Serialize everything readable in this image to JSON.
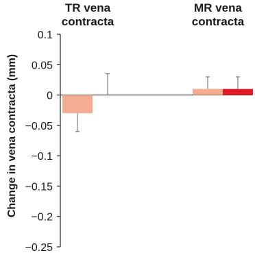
{
  "chart_data": {
    "type": "bar",
    "ylabel": "Change in vena contracta (mm)",
    "ylim": [
      -0.25,
      0.1
    ],
    "yticks": [
      0.1,
      0.05,
      0,
      -0.05,
      -0.1,
      -0.15,
      -0.2,
      -0.25
    ],
    "ytick_labels": [
      "0.1",
      "0.05",
      "0",
      "−0.05",
      "−0.1",
      "−0.15",
      "−0.2",
      "−0.25"
    ],
    "groups": [
      {
        "label_lines": [
          "TR vena",
          "contracta"
        ],
        "bars": [
          {
            "value": -0.03,
            "error": 0.03,
            "color": "#f5ad92"
          },
          {
            "value": 0.0,
            "error": 0.035,
            "color": "#e01b24"
          }
        ]
      },
      {
        "label_lines": [
          "MR vena",
          "contracta"
        ],
        "bars": [
          {
            "value": 0.01,
            "error": 0.02,
            "color": "#f5ad92"
          },
          {
            "value": 0.01,
            "error": 0.02,
            "color": "#e01b24"
          }
        ]
      }
    ],
    "grid": false,
    "legend": "none"
  }
}
